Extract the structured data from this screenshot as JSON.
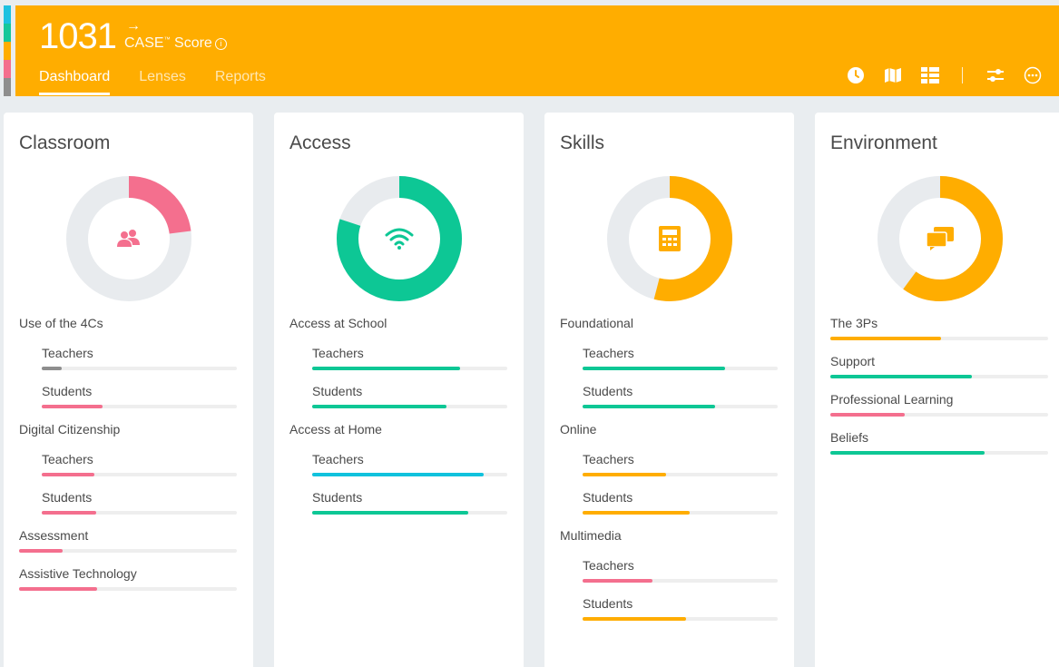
{
  "header": {
    "score": "1031",
    "score_arrow": "→",
    "score_label": "CASE",
    "score_tm": "™",
    "score_suffix": " Score",
    "info_glyph": "i",
    "bg_color": "#ffad00",
    "tabs": [
      {
        "label": "Dashboard",
        "active": true
      },
      {
        "label": "Lenses",
        "active": false
      },
      {
        "label": "Reports",
        "active": false
      }
    ],
    "icons": [
      "clock-icon",
      "map-icon",
      "list-icon",
      "sliders-icon",
      "more-icon"
    ]
  },
  "strip_colors": [
    "#1ec1e0",
    "#17c79a",
    "#ffad00",
    "#f46f8e",
    "#8e8e8e"
  ],
  "colors": {
    "pink": "#f46f8e",
    "green": "#0dc795",
    "orange": "#ffad00",
    "cyan": "#11c2dd",
    "gray": "#8e8e8e",
    "track": "#e8ebee"
  },
  "cards": [
    {
      "title": "Classroom",
      "donut_value": 0.23,
      "color": "#f46f8e",
      "icon": "people-icon",
      "metrics": [
        {
          "label": "Use of the 4Cs",
          "type": "group"
        },
        {
          "label": "Teachers",
          "value": 0.1,
          "color": "#8e8e8e"
        },
        {
          "label": "Students",
          "value": 0.31,
          "color": "#f46f8e"
        },
        {
          "label": "Digital Citizenship",
          "type": "group"
        },
        {
          "label": "Teachers",
          "value": 0.27,
          "color": "#f46f8e"
        },
        {
          "label": "Students",
          "value": 0.28,
          "color": "#f46f8e"
        },
        {
          "label": "Assessment",
          "value": 0.2,
          "color": "#f46f8e"
        },
        {
          "label": "Assistive Technology",
          "value": 0.36,
          "color": "#f46f8e"
        }
      ]
    },
    {
      "title": "Access",
      "donut_value": 0.8,
      "color": "#0dc795",
      "icon": "wifi-icon",
      "metrics": [
        {
          "label": "Access at School",
          "type": "group"
        },
        {
          "label": "Teachers",
          "value": 0.76,
          "color": "#0dc795"
        },
        {
          "label": "Students",
          "value": 0.69,
          "color": "#0dc795"
        },
        {
          "label": "Access at Home",
          "type": "group"
        },
        {
          "label": "Teachers",
          "value": 0.88,
          "color": "#11c2dd"
        },
        {
          "label": "Students",
          "value": 0.8,
          "color": "#0dc795"
        }
      ]
    },
    {
      "title": "Skills",
      "donut_value": 0.54,
      "color": "#ffad00",
      "icon": "calculator-icon",
      "metrics": [
        {
          "label": "Foundational",
          "type": "group"
        },
        {
          "label": "Teachers",
          "value": 0.73,
          "color": "#0dc795"
        },
        {
          "label": "Students",
          "value": 0.68,
          "color": "#0dc795"
        },
        {
          "label": "Online",
          "type": "group"
        },
        {
          "label": "Teachers",
          "value": 0.43,
          "color": "#ffad00"
        },
        {
          "label": "Students",
          "value": 0.55,
          "color": "#ffad00"
        },
        {
          "label": "Multimedia",
          "type": "group"
        },
        {
          "label": "Teachers",
          "value": 0.36,
          "color": "#f46f8e"
        },
        {
          "label": "Students",
          "value": 0.53,
          "color": "#ffad00"
        }
      ]
    },
    {
      "title": "Environment",
      "donut_value": 0.6,
      "color": "#ffad00",
      "icon": "chat-icon",
      "metrics": [
        {
          "label": "The 3Ps",
          "value": 0.51,
          "color": "#ffad00"
        },
        {
          "label": "Support",
          "value": 0.65,
          "color": "#0dc795"
        },
        {
          "label": "Professional Learning",
          "value": 0.34,
          "color": "#f46f8e"
        },
        {
          "label": "Beliefs",
          "value": 0.71,
          "color": "#0dc795"
        }
      ]
    }
  ]
}
